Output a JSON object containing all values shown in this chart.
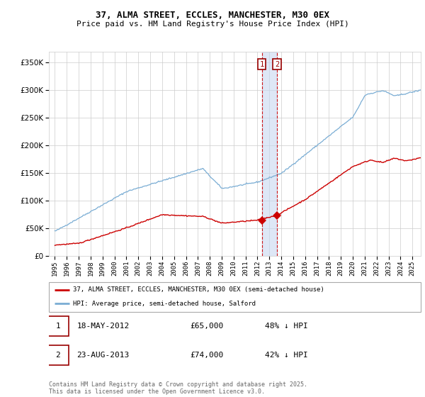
{
  "title": "37, ALMA STREET, ECCLES, MANCHESTER, M30 0EX",
  "subtitle": "Price paid vs. HM Land Registry's House Price Index (HPI)",
  "legend_line1": "37, ALMA STREET, ECCLES, MANCHESTER, M30 0EX (semi-detached house)",
  "legend_line2": "HPI: Average price, semi-detached house, Salford",
  "annotation1_label": "1",
  "annotation1_date": "18-MAY-2012",
  "annotation1_price": "£65,000",
  "annotation1_hpi": "48% ↓ HPI",
  "annotation2_label": "2",
  "annotation2_date": "23-AUG-2013",
  "annotation2_price": "£74,000",
  "annotation2_hpi": "42% ↓ HPI",
  "footer": "Contains HM Land Registry data © Crown copyright and database right 2025.\nThis data is licensed under the Open Government Licence v3.0.",
  "red_color": "#cc0000",
  "blue_color": "#7aadd4",
  "vline1_x": 2012.37,
  "vline2_x": 2013.64,
  "marker1_x": 2012.37,
  "marker1_y": 65000,
  "marker2_x": 2013.64,
  "marker2_y": 74000,
  "ylim": [
    0,
    370000
  ],
  "xlim": [
    1994.5,
    2025.7
  ],
  "yticks": [
    0,
    50000,
    100000,
    150000,
    200000,
    250000,
    300000,
    350000
  ],
  "xticks": [
    1995,
    1996,
    1997,
    1998,
    1999,
    2000,
    2001,
    2002,
    2003,
    2004,
    2005,
    2006,
    2007,
    2008,
    2009,
    2010,
    2011,
    2012,
    2013,
    2014,
    2015,
    2016,
    2017,
    2018,
    2019,
    2020,
    2021,
    2022,
    2023,
    2024,
    2025
  ]
}
